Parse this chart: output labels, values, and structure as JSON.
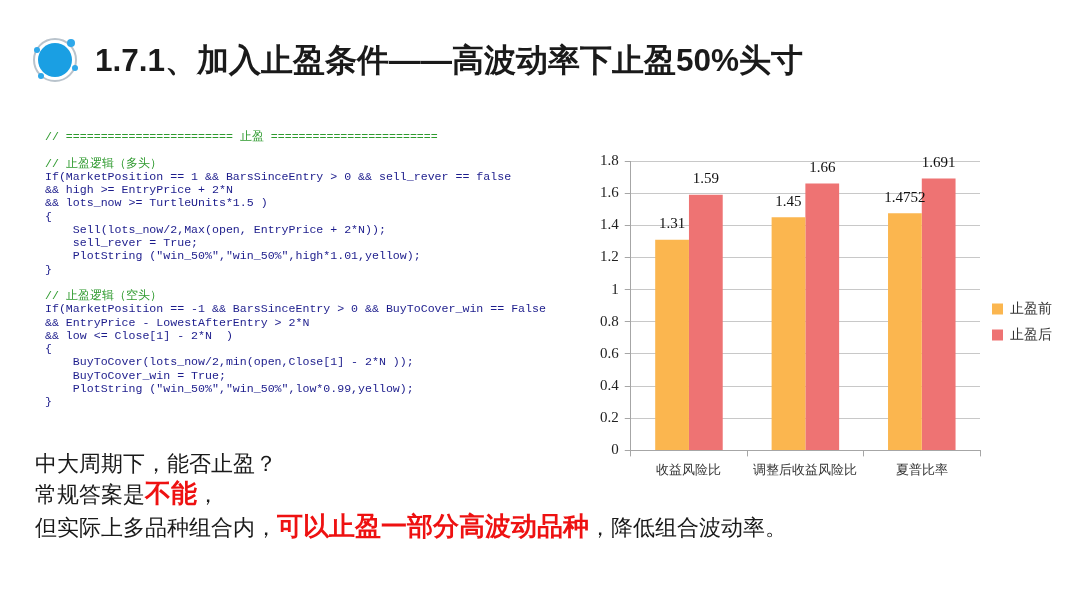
{
  "chart_data": {
    "type": "bar",
    "title": "1.7.1、加入止盈条件——高波动率下止盈50%头寸",
    "categories": [
      "收益风险比",
      "调整后收益风险比",
      "夏普比率"
    ],
    "series": [
      {
        "name": "止盈前",
        "color": "#fbb64f",
        "values": [
          1.31,
          1.45,
          1.4752
        ]
      },
      {
        "name": "止盈后",
        "color": "#ee7373",
        "values": [
          1.59,
          1.66,
          1.691
        ]
      }
    ],
    "ylim": [
      0,
      1.8
    ],
    "yticks": [
      0,
      0.2,
      0.4,
      0.6,
      0.8,
      1,
      1.2,
      1.4,
      1.6,
      1.8
    ],
    "grid": "y",
    "legend": "right",
    "data_labels": true,
    "annotations": [
      "// ======================== 止盈 ========================",
      "// 止盈逻辑（多头）",
      "If(MarketPosition == 1 && BarsSinceEntry > 0 && sell_rever == false",
      "&& high >= EntryPrice + 2*N",
      "&& lots_now >= TurtleUnits*1.5 )",
      "{",
      "    Sell(lots_now/2,Max(open, EntryPrice + 2*N));",
      "    sell_rever = True;",
      "    PlotString (\"win_50%\",\"win_50%\",high*1.01,yellow);",
      "}",
      "// 止盈逻辑（空头）",
      "If(MarketPosition == -1 && BarsSinceEntry > 0 && BuyToCover_win == False",
      "&& EntryPrice - LowestAfterEntry > 2*N",
      "&& low <= Close[1] - 2*N  )",
      "{",
      "    BuyToCover(lots_now/2,min(open,Close[1] - 2*N ));",
      "    BuyToCover_win = True;",
      "    PlotString (\"win_50%\",\"win_50%\",low*0.99,yellow);",
      "}",
      "中大周期下，能否止盈？",
      "常规答案是",
      "不能",
      "，",
      "但实际上多品种组合内，",
      "可以止盈一部分高波动品种",
      "，降低组合波动率。"
    ]
  }
}
